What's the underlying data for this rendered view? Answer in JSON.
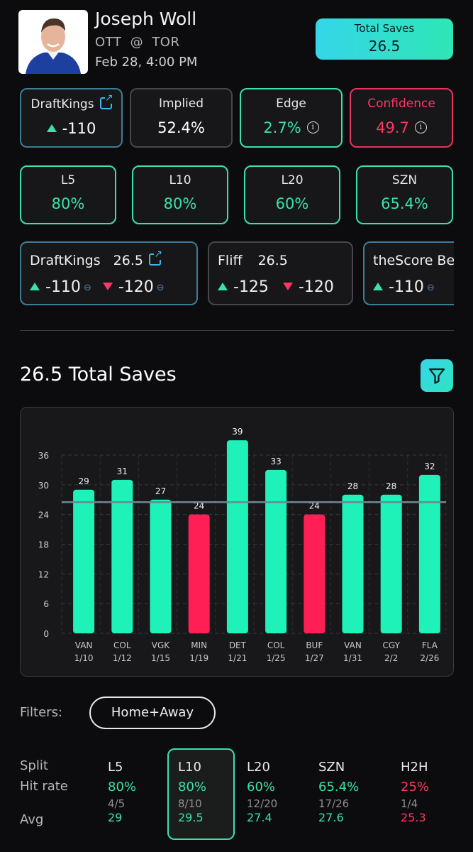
{
  "player": {
    "name": "Joseph Woll",
    "away": "OTT",
    "at": "@",
    "home": "TOR",
    "game_time": "Feb 28, 4:00 PM"
  },
  "total_badge": {
    "label": "Total Saves",
    "value": "26.5"
  },
  "top_cards": {
    "book": {
      "name": "DraftKings",
      "odds": "-110"
    },
    "implied": {
      "label": "Implied",
      "value": "52.4%"
    },
    "edge": {
      "label": "Edge",
      "value": "2.7%"
    },
    "confidence": {
      "label": "Confidence",
      "value": "49.7"
    }
  },
  "splits": [
    {
      "label": "L5",
      "value": "80%"
    },
    {
      "label": "L10",
      "value": "80%"
    },
    {
      "label": "L20",
      "value": "60%"
    },
    {
      "label": "SZN",
      "value": "65.4%"
    }
  ],
  "books": [
    {
      "name": "DraftKings",
      "line": "26.5",
      "over": "-110",
      "under": "-120"
    },
    {
      "name": "Fliff",
      "line": "26.5",
      "over": "-125",
      "under": "-120"
    },
    {
      "name": "theScore Bet",
      "over": "-110"
    }
  ],
  "section_title": "26.5 Total Saves",
  "chart_data": {
    "type": "bar",
    "line": 26.5,
    "ylim": [
      0,
      36
    ],
    "yticks": [
      0,
      6,
      12,
      18,
      24,
      30,
      36
    ],
    "colors": {
      "over": "#1ef2b8",
      "under": "#ff1f55",
      "line": "#6f8793"
    },
    "categories": [
      "VAN",
      "COL",
      "VGK",
      "MIN",
      "DET",
      "COL",
      "BUF",
      "VAN",
      "CGY",
      "FLA"
    ],
    "dates": [
      "1/10",
      "1/12",
      "1/15",
      "1/19",
      "1/21",
      "1/25",
      "1/27",
      "1/31",
      "2/2",
      "2/26"
    ],
    "values": [
      29,
      31,
      27,
      24,
      39,
      33,
      24,
      28,
      28,
      32
    ]
  },
  "filters": {
    "label": "Filters:",
    "selected": "Home+Away"
  },
  "table": {
    "row_labels": {
      "split": "Split",
      "hit_rate": "Hit rate",
      "avg": "Avg"
    },
    "columns": [
      {
        "h": "L5",
        "rate": "80%",
        "frac": "4/5",
        "avg": "29",
        "color": "green"
      },
      {
        "h": "L10",
        "rate": "80%",
        "frac": "8/10",
        "avg": "29.5",
        "color": "green"
      },
      {
        "h": "L20",
        "rate": "60%",
        "frac": "12/20",
        "avg": "27.4",
        "color": "green"
      },
      {
        "h": "SZN",
        "rate": "65.4%",
        "frac": "17/26",
        "avg": "27.6",
        "color": "green"
      },
      {
        "h": "H2H",
        "rate": "25%",
        "frac": "1/4",
        "avg": "25.3",
        "color": "red"
      }
    ]
  }
}
